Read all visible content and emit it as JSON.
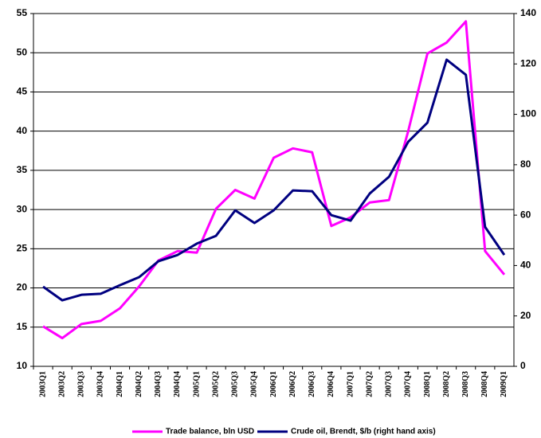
{
  "chart_data": {
    "type": "line",
    "categories": [
      "2003Q1",
      "2003Q2",
      "2003Q3",
      "2003Q4",
      "2004Q1",
      "2004Q2",
      "2004Q3",
      "2004Q4",
      "2005Q1",
      "2005Q2",
      "2005Q3",
      "2005Q4",
      "2006Q1",
      "2006Q2",
      "2006Q3",
      "2006Q4",
      "2007Q1",
      "2007Q2",
      "2007Q3",
      "2007Q4",
      "2008Q1",
      "2008Q2",
      "2008Q3",
      "2008Q4",
      "2009Q1"
    ],
    "series": [
      {
        "name": "Trade balance, bln USD",
        "color": "#ff00ff",
        "values": [
          15.1,
          13.6,
          15.4,
          15.8,
          17.4,
          20.2,
          23.5,
          24.7,
          24.5,
          30.1,
          32.5,
          31.4,
          36.6,
          37.8,
          37.3,
          27.9,
          29.0,
          30.9,
          31.2,
          40.0,
          49.9,
          51.3,
          54.0,
          24.7,
          21.7
        ]
      },
      {
        "name": "Crude oil, Brendt, $/b (right hand axis)",
        "color": "#000080",
        "axis": "y2",
        "values": [
          31.6,
          26.2,
          28.4,
          28.8,
          32.2,
          35.4,
          41.7,
          44.2,
          48.7,
          51.8,
          61.9,
          56.9,
          61.9,
          69.8,
          69.5,
          60.0,
          57.8,
          68.6,
          75.2,
          89.1,
          96.7,
          121.7,
          115.7,
          55.3,
          44.2
        ]
      }
    ],
    "ylim": [
      10,
      55
    ],
    "yticks": [
      10,
      15,
      20,
      25,
      30,
      35,
      40,
      45,
      50,
      55
    ],
    "y2lim": [
      0,
      140
    ],
    "y2ticks": [
      0,
      20,
      40,
      60,
      80,
      100,
      120,
      140
    ],
    "grid": true
  }
}
